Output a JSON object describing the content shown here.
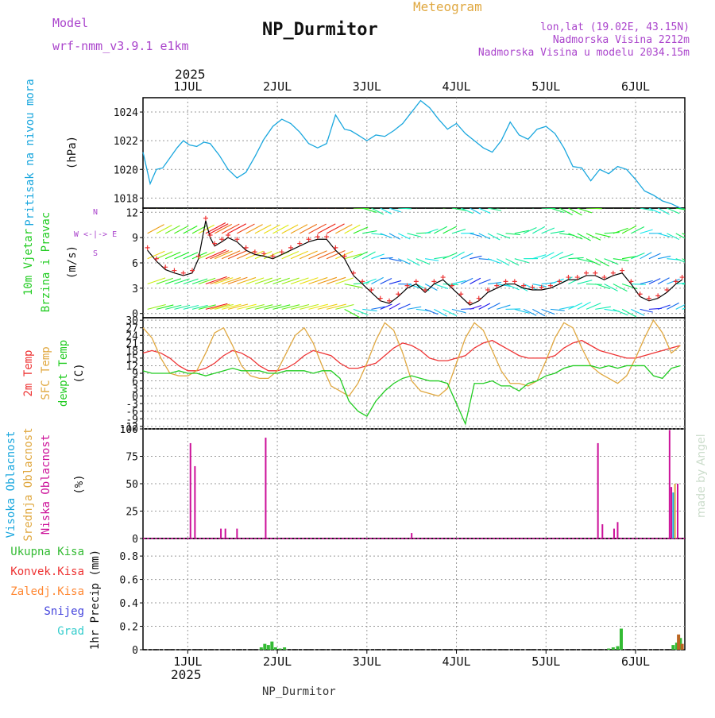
{
  "header": {
    "model_label": "Model",
    "model_name": "wrf-nmm_v3.9.1 e1km",
    "product": "Meteogram",
    "station": "NP_Durmitor",
    "coords": "lon,lat (19.02E, 43.15N)",
    "elevation": "Nadmorska Visina 2212m",
    "model_elevation": "Nadmorska Visina u modelu 2034.15m",
    "footer_station": "NP_Durmitor",
    "watermark": "made by Angel",
    "year": "2025"
  },
  "colors": {
    "pressure": "#1aa7de",
    "temp2m": "#ee3333",
    "sfc": "#e0a840",
    "dew": "#22cc22",
    "high_cloud": "#1aa7de",
    "mid_cloud": "#e0a840",
    "low_cloud": "#cc1199",
    "precip_total": "#33bb33",
    "precip_conv": "#ee3333",
    "precip_frozen": "#ff8833",
    "snow": "#4444dd",
    "hail": "#33cccc",
    "header_purple": "#aa44cc"
  },
  "chart_data": [
    {
      "type": "line",
      "id": "pressure",
      "ylabel_main": "Pritisak na nivou mora",
      "ylabel_unit": "(hPa)",
      "x_ticks": [
        "1JUL",
        "2JUL",
        "3JUL",
        "4JUL",
        "5JUL",
        "6JUL"
      ],
      "yticks": [
        "1018",
        "1020",
        "1022",
        "1024"
      ],
      "ylim": [
        1017.3,
        1025.0
      ],
      "xlim_days": [
        30.5,
        36.55
      ],
      "series": [
        {
          "x": [
            30.5,
            30.58,
            30.65,
            30.72,
            30.8,
            30.88,
            30.95,
            31.02,
            31.1,
            31.18,
            31.25,
            31.35,
            31.45,
            31.55,
            31.65,
            31.75,
            31.85,
            31.95,
            32.05,
            32.15,
            32.25,
            32.35,
            32.45,
            32.55,
            32.65,
            32.75,
            32.82,
            32.9,
            33.0,
            33.1,
            33.2,
            33.3,
            33.4,
            33.5,
            33.6,
            33.7,
            33.8,
            33.9,
            34.0,
            34.1,
            34.2,
            34.3,
            34.4,
            34.5,
            34.6,
            34.7,
            34.8,
            34.9,
            35.0,
            35.1,
            35.2,
            35.3,
            35.4,
            35.5,
            35.6,
            35.7,
            35.8,
            35.9,
            36.0,
            36.1,
            36.2,
            36.3,
            36.4,
            36.5,
            36.55
          ],
          "values": [
            1021.2,
            1019.0,
            1020.0,
            1020.1,
            1020.8,
            1021.5,
            1022.0,
            1021.7,
            1021.6,
            1021.9,
            1021.8,
            1021.0,
            1020.0,
            1019.4,
            1019.8,
            1020.9,
            1022.1,
            1023.0,
            1023.5,
            1023.2,
            1022.6,
            1021.8,
            1021.5,
            1021.8,
            1023.8,
            1022.8,
            1022.7,
            1022.4,
            1022.0,
            1022.4,
            1022.3,
            1022.7,
            1023.2,
            1024.0,
            1024.8,
            1024.3,
            1023.5,
            1022.8,
            1023.2,
            1022.5,
            1022.0,
            1021.5,
            1021.2,
            1022.0,
            1023.3,
            1022.4,
            1022.1,
            1022.8,
            1023.0,
            1022.5,
            1021.5,
            1020.2,
            1020.1,
            1019.2,
            1020.0,
            1019.7,
            1020.2,
            1020.0,
            1019.3,
            1018.5,
            1018.2,
            1017.8,
            1017.6,
            1017.3,
            1017.2
          ]
        }
      ]
    },
    {
      "type": "line",
      "id": "wind",
      "ylabel_main": "10m Vjetar",
      "ylabel_sub": "Brzina i Pravac",
      "ylabel_unit": "(m/s)",
      "compass": "W <-|-> E",
      "compass_s": "S",
      "compass_n": "N",
      "yticks": [
        "0",
        "3",
        "6",
        "9",
        "12"
      ],
      "ylim": [
        -0.5,
        12.5
      ],
      "series": [
        {
          "name": "speed",
          "x": [
            30.55,
            30.65,
            30.75,
            30.85,
            30.95,
            31.05,
            31.12,
            31.2,
            31.25,
            31.3,
            31.38,
            31.45,
            31.55,
            31.65,
            31.75,
            31.85,
            31.95,
            32.05,
            32.15,
            32.25,
            32.35,
            32.45,
            32.55,
            32.65,
            32.75,
            32.85,
            32.95,
            33.05,
            33.15,
            33.25,
            33.35,
            33.45,
            33.55,
            33.65,
            33.75,
            33.85,
            33.95,
            34.05,
            34.15,
            34.25,
            34.35,
            34.45,
            34.55,
            34.65,
            34.75,
            34.85,
            34.95,
            35.05,
            35.15,
            35.25,
            35.35,
            35.45,
            35.55,
            35.65,
            35.75,
            35.85,
            35.95,
            36.05,
            36.15,
            36.25,
            36.35,
            36.45,
            36.52
          ],
          "values": [
            7.5,
            6.2,
            5.2,
            4.8,
            4.5,
            4.8,
            6.5,
            11.0,
            9.0,
            8.0,
            8.5,
            9.0,
            8.5,
            7.5,
            7.0,
            6.8,
            6.5,
            7.0,
            7.5,
            8.0,
            8.5,
            8.8,
            8.8,
            7.5,
            6.5,
            4.5,
            3.5,
            2.5,
            1.5,
            1.2,
            2.0,
            3.0,
            3.5,
            2.5,
            3.5,
            4.0,
            3.0,
            2.0,
            1.0,
            1.5,
            2.5,
            3.0,
            3.5,
            3.5,
            3.0,
            2.8,
            2.8,
            3.0,
            3.5,
            4.0,
            4.0,
            4.5,
            4.5,
            4.0,
            4.5,
            4.8,
            3.5,
            2.0,
            1.5,
            1.8,
            2.5,
            3.5,
            4.0
          ]
        }
      ]
    },
    {
      "type": "line",
      "id": "temperature",
      "ylabel_lines": [
        "2m Temp",
        "SFC Temp",
        "dewpt Temp"
      ],
      "ylabel_unit": "(C)",
      "yticks": [
        "-12",
        "-9",
        "-6",
        "-3",
        "0",
        "3",
        "6",
        "9",
        "12",
        "15",
        "18",
        "21",
        "24",
        "27",
        "30"
      ],
      "ylim": [
        -13,
        31
      ],
      "x": [
        30.5,
        30.6,
        30.7,
        30.8,
        30.9,
        31.0,
        31.1,
        31.2,
        31.3,
        31.4,
        31.5,
        31.6,
        31.7,
        31.8,
        31.9,
        32.0,
        32.1,
        32.2,
        32.3,
        32.4,
        32.5,
        32.6,
        32.7,
        32.8,
        32.9,
        33.0,
        33.1,
        33.2,
        33.3,
        33.4,
        33.5,
        33.6,
        33.7,
        33.8,
        33.9,
        34.0,
        34.1,
        34.2,
        34.3,
        34.4,
        34.5,
        34.6,
        34.7,
        34.8,
        34.9,
        35.0,
        35.1,
        35.2,
        35.3,
        35.4,
        35.5,
        35.6,
        35.7,
        35.8,
        35.9,
        36.0,
        36.1,
        36.2,
        36.3,
        36.4,
        36.5
      ],
      "series": [
        {
          "name": "2m Temp",
          "values": [
            17,
            18,
            17,
            15,
            12,
            10,
            10,
            11,
            13,
            16,
            18,
            17,
            15,
            12,
            10,
            10,
            11,
            13,
            16,
            18,
            17,
            16,
            13,
            11,
            11,
            12,
            13,
            16,
            19,
            21,
            20,
            18,
            15,
            14,
            14,
            15,
            16,
            19,
            21,
            22,
            20,
            18,
            16,
            15,
            15,
            15,
            16,
            19,
            21,
            22,
            20,
            18,
            17,
            16,
            15,
            15,
            16,
            17,
            18,
            19,
            20
          ]
        },
        {
          "name": "SFC Temp",
          "values": [
            27,
            23,
            15,
            9,
            8,
            8,
            10,
            17,
            25,
            27,
            20,
            12,
            8,
            7,
            7,
            10,
            17,
            24,
            27,
            21,
            12,
            4,
            2,
            0,
            5,
            13,
            22,
            29,
            26,
            17,
            6,
            2,
            1,
            0,
            3,
            13,
            23,
            29,
            26,
            18,
            10,
            5,
            5,
            4,
            6,
            14,
            23,
            29,
            27,
            19,
            12,
            9,
            7,
            5,
            8,
            15,
            23,
            30,
            25,
            17,
            20
          ]
        },
        {
          "name": "dewpt Temp",
          "values": [
            10,
            9,
            9,
            9,
            10,
            9,
            9,
            8,
            9,
            10,
            11,
            10,
            10,
            10,
            9,
            9,
            10,
            10,
            10,
            9,
            10,
            10,
            7,
            -2,
            -6,
            -8,
            -2,
            2,
            5,
            7,
            8,
            7,
            6,
            6,
            5,
            -3,
            -11,
            5,
            5,
            6,
            4,
            4,
            2,
            5,
            6,
            8,
            9,
            11,
            12,
            12,
            12,
            11,
            12,
            11,
            12,
            12,
            12,
            8,
            7,
            11,
            12
          ]
        }
      ]
    },
    {
      "type": "bar",
      "id": "cloud",
      "ylabel_lines": [
        "Visoka Oblacnost",
        "Srednja Oblacnost",
        "Niska  Oblacnost"
      ],
      "ylabel_unit": "(%)",
      "yticks": [
        "0",
        "25",
        "50",
        "75",
        "100"
      ],
      "ylim": [
        0,
        100
      ],
      "series": [
        {
          "name": "Niska Oblacnost",
          "x": [
            31.03,
            31.08,
            31.37,
            31.42,
            31.55,
            31.87,
            33.5,
            35.58,
            35.63,
            35.76,
            35.8,
            36.38,
            36.4,
            36.47
          ],
          "values": [
            87,
            66,
            9,
            9,
            9,
            92,
            5,
            87,
            13,
            9,
            15,
            99,
            47,
            50
          ]
        },
        {
          "name": "Srednja Oblacnost",
          "x": [
            36.44
          ],
          "values": [
            50
          ]
        },
        {
          "name": "Visoka Oblacnost",
          "x": [
            36.42
          ],
          "values": [
            42
          ]
        }
      ]
    },
    {
      "type": "bar",
      "id": "precip",
      "ylabel_lines": [
        "Ukupna  Kisa",
        "Konvek.Kisa",
        "Zaledj.Kisa",
        "Snijeg",
        "Grad"
      ],
      "ylabel_main": "1hr Precip (mm)",
      "yticks": [
        "0",
        "0.2",
        "0.4",
        "0.6",
        "0.8"
      ],
      "ylim": [
        0,
        0.95
      ],
      "x_ticks": [
        "1JUL",
        "2JUL",
        "3JUL",
        "4JUL",
        "5JUL",
        "6JUL"
      ],
      "series": [
        {
          "name": "Ukupna Kisa",
          "x": [
            31.82,
            31.86,
            31.9,
            31.94,
            31.98,
            32.03,
            32.08,
            35.7,
            35.75,
            35.8,
            35.84,
            36.42,
            36.46,
            36.5
          ],
          "values": [
            0.02,
            0.05,
            0.04,
            0.07,
            0.02,
            0.01,
            0.02,
            0.01,
            0.02,
            0.03,
            0.18,
            0.04,
            0.06,
            0.1
          ]
        },
        {
          "name": "Zaledj.Kisa",
          "x": [
            36.48,
            36.52
          ],
          "values": [
            0.13,
            0.05
          ]
        }
      ]
    }
  ]
}
